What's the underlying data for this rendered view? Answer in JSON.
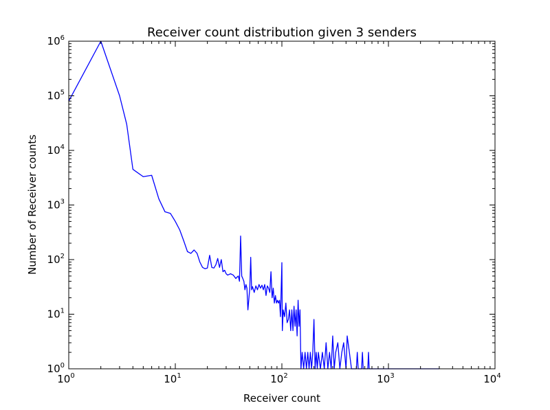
{
  "chart_data": {
    "type": "line",
    "title": "Receiver count distribution given 3 senders",
    "xlabel": "Receiver count",
    "ylabel": "Number of Receiver counts",
    "xscale": "log",
    "yscale": "log",
    "xlim": [
      1,
      10000
    ],
    "ylim": [
      1,
      1000000
    ],
    "grid": false,
    "legend": "none",
    "line_color": "#0000ff",
    "x_ticks": [
      {
        "base": "10",
        "exp": "0",
        "value": 1
      },
      {
        "base": "10",
        "exp": "1",
        "value": 10
      },
      {
        "base": "10",
        "exp": "2",
        "value": 100
      },
      {
        "base": "10",
        "exp": "3",
        "value": 1000
      },
      {
        "base": "10",
        "exp": "4",
        "value": 10000
      }
    ],
    "y_ticks": [
      {
        "base": "10",
        "exp": "0",
        "value": 1
      },
      {
        "base": "10",
        "exp": "1",
        "value": 10
      },
      {
        "base": "10",
        "exp": "2",
        "value": 100
      },
      {
        "base": "10",
        "exp": "3",
        "value": 1000
      },
      {
        "base": "10",
        "exp": "4",
        "value": 10000
      },
      {
        "base": "10",
        "exp": "5",
        "value": 100000
      },
      {
        "base": "10",
        "exp": "6",
        "value": 1000000
      }
    ],
    "series": [
      {
        "points": [
          [
            1,
            80000
          ],
          [
            2,
            1000000
          ],
          [
            3,
            100000
          ],
          [
            3.5,
            30000
          ],
          [
            4,
            4500
          ],
          [
            5,
            3300
          ],
          [
            6,
            3500
          ],
          [
            7,
            1300
          ],
          [
            8,
            750
          ],
          [
            9,
            700
          ],
          [
            10,
            500
          ],
          [
            11,
            350
          ],
          [
            12,
            220
          ],
          [
            13,
            140
          ],
          [
            14,
            130
          ],
          [
            15,
            150
          ],
          [
            16,
            130
          ],
          [
            17,
            90
          ],
          [
            18,
            72
          ],
          [
            19,
            68
          ],
          [
            20,
            70
          ],
          [
            21,
            120
          ],
          [
            22,
            72
          ],
          [
            23,
            70
          ],
          [
            24,
            80
          ],
          [
            25,
            105
          ],
          [
            26,
            72
          ],
          [
            27,
            100
          ],
          [
            28,
            60
          ],
          [
            29,
            64
          ],
          [
            30,
            55
          ],
          [
            31,
            52
          ],
          [
            33,
            55
          ],
          [
            35,
            52
          ],
          [
            37,
            45
          ],
          [
            38,
            48
          ],
          [
            39,
            50
          ],
          [
            40,
            40
          ],
          [
            41,
            270
          ],
          [
            42,
            50
          ],
          [
            43,
            45
          ],
          [
            44,
            40
          ],
          [
            45,
            28
          ],
          [
            46,
            35
          ],
          [
            47,
            30
          ],
          [
            48,
            12
          ],
          [
            50,
            30
          ],
          [
            51,
            110
          ],
          [
            52,
            28
          ],
          [
            53,
            32
          ],
          [
            55,
            25
          ],
          [
            57,
            33
          ],
          [
            59,
            28
          ],
          [
            61,
            35
          ],
          [
            63,
            30
          ],
          [
            65,
            34
          ],
          [
            67,
            28
          ],
          [
            69,
            35
          ],
          [
            71,
            22
          ],
          [
            73,
            33
          ],
          [
            75,
            30
          ],
          [
            77,
            25
          ],
          [
            79,
            60
          ],
          [
            81,
            20
          ],
          [
            83,
            30
          ],
          [
            85,
            16
          ],
          [
            87,
            22
          ],
          [
            89,
            16
          ],
          [
            91,
            18
          ],
          [
            93,
            16
          ],
          [
            95,
            18
          ],
          [
            97,
            9
          ],
          [
            100,
            88
          ],
          [
            101,
            5
          ],
          [
            103,
            12
          ],
          [
            106,
            9
          ],
          [
            109,
            16
          ],
          [
            112,
            7
          ],
          [
            115,
            8
          ],
          [
            118,
            12
          ],
          [
            121,
            5
          ],
          [
            124,
            12
          ],
          [
            127,
            5
          ],
          [
            130,
            14
          ],
          [
            133,
            6
          ],
          [
            136,
            12
          ],
          [
            139,
            4
          ],
          [
            142,
            18
          ],
          [
            145,
            6
          ],
          [
            148,
            12
          ],
          [
            151,
            1
          ],
          [
            155,
            2
          ],
          [
            160,
            1
          ],
          [
            165,
            2
          ],
          [
            170,
            1
          ],
          [
            175,
            2
          ],
          [
            180,
            1
          ],
          [
            185,
            2
          ],
          [
            190,
            1
          ],
          [
            195,
            2
          ],
          [
            200,
            8
          ],
          [
            205,
            1
          ],
          [
            210,
            2
          ],
          [
            215,
            1
          ],
          [
            220,
            2
          ],
          [
            230,
            1
          ],
          [
            240,
            2
          ],
          [
            250,
            1
          ],
          [
            260,
            3
          ],
          [
            270,
            1
          ],
          [
            280,
            2
          ],
          [
            290,
            1
          ],
          [
            300,
            4
          ],
          [
            310,
            1
          ],
          [
            320,
            2
          ],
          [
            335,
            3
          ],
          [
            350,
            1
          ],
          [
            365,
            2
          ],
          [
            380,
            3
          ],
          [
            400,
            1
          ],
          [
            410,
            4
          ],
          [
            430,
            2
          ],
          [
            450,
            1
          ],
          [
            500,
            1
          ],
          [
            510,
            2
          ],
          [
            520,
            1
          ],
          [
            560,
            1
          ],
          [
            570,
            2
          ],
          [
            580,
            1
          ],
          [
            640,
            1
          ],
          [
            650,
            2
          ],
          [
            660,
            1
          ],
          [
            1000,
            1
          ],
          [
            2000,
            1
          ],
          [
            3000,
            1
          ]
        ]
      }
    ]
  }
}
